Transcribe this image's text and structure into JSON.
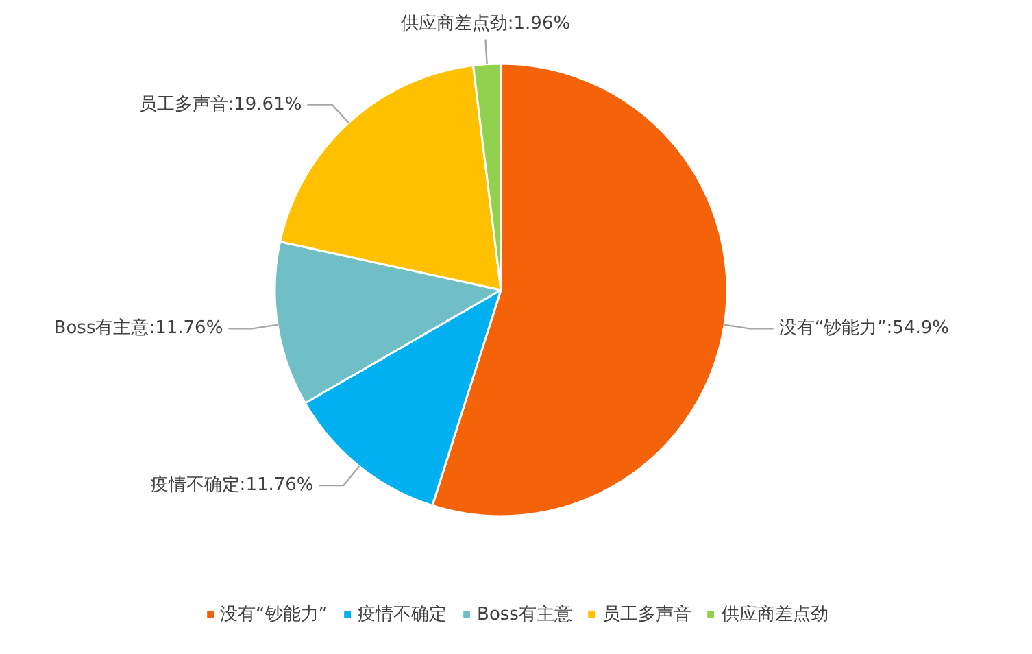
{
  "chart_data": {
    "type": "pie",
    "categories": [
      "没有“钞能力”",
      "疫情不确定",
      "Boss有主意",
      "员工多声音",
      "供应商差点劲"
    ],
    "values": [
      54.9,
      11.76,
      11.76,
      19.61,
      1.96
    ],
    "colors": [
      "#f4620a",
      "#00b0f0",
      "#70bfc6",
      "#ffc000",
      "#92d050"
    ],
    "value_labels": [
      "没有“钞能力”:54.9%",
      "疫情不确定:11.76%",
      "Boss有主意:11.76%",
      "员工多声音:19.61%",
      "供应商差点劲:1.96%"
    ],
    "legend": "bottom"
  }
}
